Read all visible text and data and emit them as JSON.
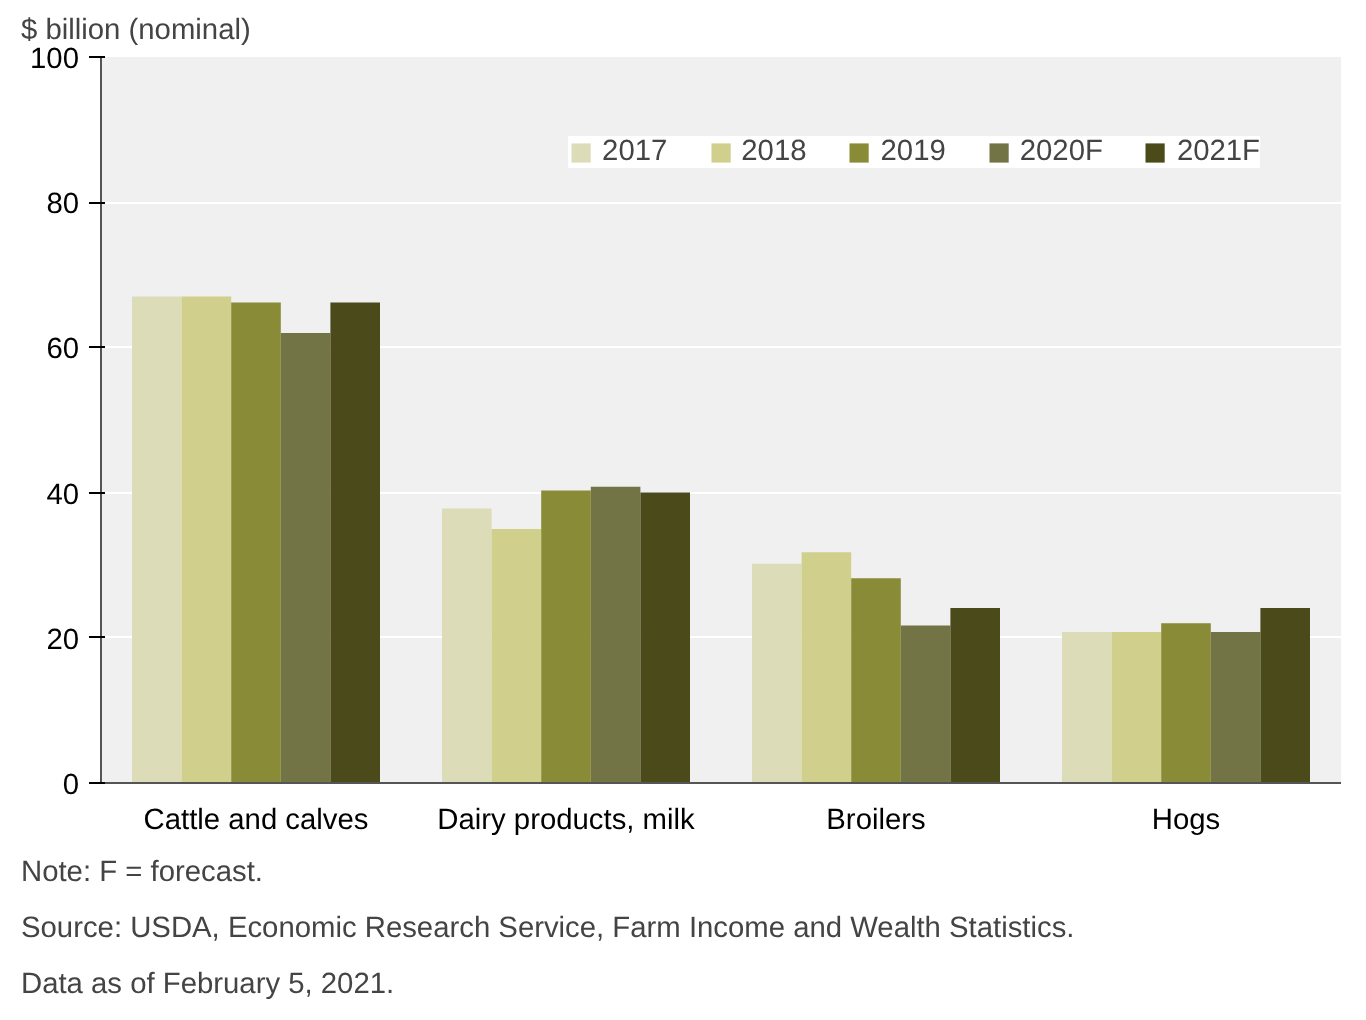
{
  "chart_data": {
    "type": "bar",
    "ylabel": "$ billion (nominal)",
    "categories": [
      "Cattle and calves",
      "Dairy products, milk",
      "Broilers",
      "Hogs"
    ],
    "series": [
      {
        "name": "2017",
        "color": "#dcdcb9",
        "values": [
          67,
          37.8,
          30.2,
          20.8
        ]
      },
      {
        "name": "2018",
        "color": "#d0d08c",
        "values": [
          67,
          35,
          31.8,
          20.8
        ]
      },
      {
        "name": "2019",
        "color": "#8a8b36",
        "values": [
          66.2,
          40.3,
          28.2,
          22
        ]
      },
      {
        "name": "2020F",
        "color": "#737446",
        "values": [
          62,
          40.8,
          21.7,
          20.8
        ]
      },
      {
        "name": "2021F",
        "color": "#4a4a1a",
        "values": [
          66.2,
          40,
          24.1,
          24.1
        ]
      }
    ],
    "ylim": [
      0,
      100
    ],
    "yticks": [
      0,
      20,
      40,
      60,
      80,
      100
    ],
    "grid": "y",
    "legend": "top right",
    "annotations": [
      "Note: F = forecast.",
      "Source: USDA, Economic Research Service, Farm Income and Wealth Statistics.",
      "Data as of February 5, 2021."
    ]
  }
}
